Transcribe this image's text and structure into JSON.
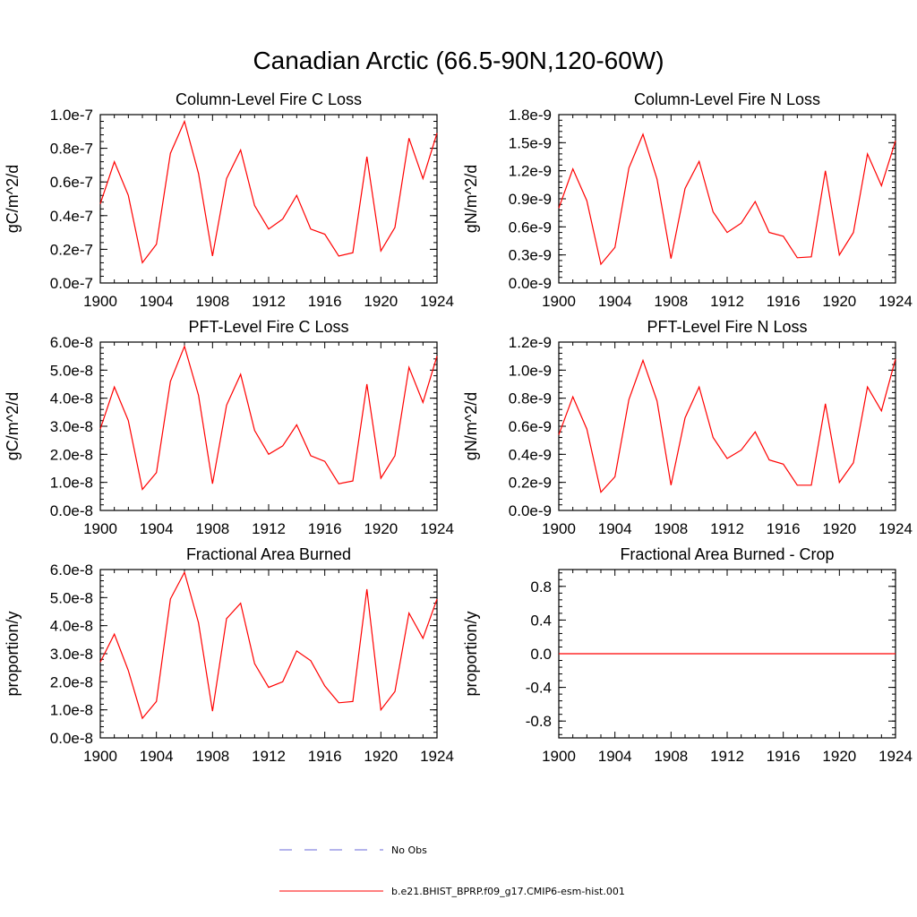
{
  "title": "Canadian Arctic (66.5-90N,120-60W)",
  "chart_data": [
    {
      "type": "line",
      "title": "Column-Level Fire C Loss",
      "ylabel": "gC/m^2/d",
      "xlabel": "",
      "xlim": [
        1900,
        1924
      ],
      "ylim": [
        0,
        1e-07
      ],
      "xticks": [
        "1900",
        "1904",
        "1908",
        "1912",
        "1916",
        "1920",
        "1924"
      ],
      "yticks": [
        "0.0e-7",
        "0.2e-7",
        "0.4e-7",
        "0.6e-7",
        "0.8e-7",
        "1.0e-7"
      ],
      "x": [
        1900,
        1901,
        1902,
        1903,
        1904,
        1905,
        1906,
        1907,
        1908,
        1909,
        1910,
        1911,
        1912,
        1913,
        1914,
        1915,
        1916,
        1917,
        1918,
        1919,
        1920,
        1921,
        1922,
        1923,
        1924
      ],
      "series": [
        {
          "name": "b.e21.BHIST_BPRP.f09_g17.CMIP6-esm-hist.001",
          "color": "#ff0000",
          "values": [
            4.7e-08,
            7.2e-08,
            5.2e-08,
            1.2e-08,
            2.3e-08,
            7.7e-08,
            9.6e-08,
            6.5e-08,
            1.6e-08,
            6.2e-08,
            7.9e-08,
            4.6e-08,
            3.2e-08,
            3.8e-08,
            5.2e-08,
            3.2e-08,
            2.9e-08,
            1.6e-08,
            1.8e-08,
            7.5e-08,
            1.9e-08,
            3.3e-08,
            8.6e-08,
            6.2e-08,
            8.9e-08
          ]
        }
      ]
    },
    {
      "type": "line",
      "title": "Column-Level Fire N Loss",
      "ylabel": "gN/m^2/d",
      "xlabel": "",
      "xlim": [
        1900,
        1924
      ],
      "ylim": [
        0,
        1.8e-09
      ],
      "xticks": [
        "1900",
        "1904",
        "1908",
        "1912",
        "1916",
        "1920",
        "1924"
      ],
      "yticks": [
        "0.0e-9",
        "0.3e-9",
        "0.6e-9",
        "0.9e-9",
        "1.2e-9",
        "1.5e-9",
        "1.8e-9"
      ],
      "x": [
        1900,
        1901,
        1902,
        1903,
        1904,
        1905,
        1906,
        1907,
        1908,
        1909,
        1910,
        1911,
        1912,
        1913,
        1914,
        1915,
        1916,
        1917,
        1918,
        1919,
        1920,
        1921,
        1922,
        1923,
        1924
      ],
      "series": [
        {
          "name": "b.e21.BHIST_BPRP.f09_g17.CMIP6-esm-hist.001",
          "color": "#ff0000",
          "values": [
            8e-10,
            1.22e-09,
            8.8e-10,
            2e-10,
            3.8e-10,
            1.23e-09,
            1.59e-09,
            1.11e-09,
            2.6e-10,
            1.01e-09,
            1.3e-09,
            7.6e-10,
            5.4e-10,
            6.4e-10,
            8.7e-10,
            5.4e-10,
            5e-10,
            2.7e-10,
            2.8e-10,
            1.2e-09,
            3e-10,
            5.4e-10,
            1.38e-09,
            1.04e-09,
            1.52e-09
          ]
        }
      ]
    },
    {
      "type": "line",
      "title": "PFT-Level Fire C Loss",
      "ylabel": "gC/m^2/d",
      "xlabel": "",
      "xlim": [
        1900,
        1924
      ],
      "ylim": [
        0,
        6e-08
      ],
      "xticks": [
        "1900",
        "1904",
        "1908",
        "1912",
        "1916",
        "1920",
        "1924"
      ],
      "yticks": [
        "0.0e-8",
        "1.0e-8",
        "2.0e-8",
        "3.0e-8",
        "4.0e-8",
        "5.0e-8",
        "6.0e-8"
      ],
      "x": [
        1900,
        1901,
        1902,
        1903,
        1904,
        1905,
        1906,
        1907,
        1908,
        1909,
        1910,
        1911,
        1912,
        1913,
        1914,
        1915,
        1916,
        1917,
        1918,
        1919,
        1920,
        1921,
        1922,
        1923,
        1924
      ],
      "series": [
        {
          "name": "b.e21.BHIST_BPRP.f09_g17.CMIP6-esm-hist.001",
          "color": "#ff0000",
          "values": [
            2.9e-08,
            4.4e-08,
            3.2e-08,
            7.5e-09,
            1.35e-08,
            4.6e-08,
            5.85e-08,
            4.1e-08,
            9.5e-09,
            3.75e-08,
            4.85e-08,
            2.85e-08,
            2e-08,
            2.3e-08,
            3.05e-08,
            1.95e-08,
            1.75e-08,
            9.5e-09,
            1.05e-08,
            4.5e-08,
            1.15e-08,
            1.95e-08,
            5.1e-08,
            3.85e-08,
            5.5e-08
          ]
        }
      ]
    },
    {
      "type": "line",
      "title": "PFT-Level Fire N Loss",
      "ylabel": "gN/m^2/d",
      "xlabel": "",
      "xlim": [
        1900,
        1924
      ],
      "ylim": [
        0,
        1.2e-09
      ],
      "xticks": [
        "1900",
        "1904",
        "1908",
        "1912",
        "1916",
        "1920",
        "1924"
      ],
      "yticks": [
        "0.0e-9",
        "0.2e-9",
        "0.4e-9",
        "0.6e-9",
        "0.8e-9",
        "1.0e-9",
        "1.2e-9"
      ],
      "x": [
        1900,
        1901,
        1902,
        1903,
        1904,
        1905,
        1906,
        1907,
        1908,
        1909,
        1910,
        1911,
        1912,
        1913,
        1914,
        1915,
        1916,
        1917,
        1918,
        1919,
        1920,
        1921,
        1922,
        1923,
        1924
      ],
      "series": [
        {
          "name": "b.e21.BHIST_BPRP.f09_g17.CMIP6-esm-hist.001",
          "color": "#ff0000",
          "values": [
            5.4e-10,
            8.1e-10,
            5.8e-10,
            1.3e-10,
            2.4e-10,
            7.9e-10,
            1.07e-09,
            7.8e-10,
            1.8e-10,
            6.6e-10,
            8.8e-10,
            5.2e-10,
            3.7e-10,
            4.3e-10,
            5.6e-10,
            3.6e-10,
            3.3e-10,
            1.8e-10,
            1.8e-10,
            7.6e-10,
            2e-10,
            3.4e-10,
            8.8e-10,
            7.1e-10,
            1.08e-09
          ]
        }
      ]
    },
    {
      "type": "line",
      "title": "Fractional Area Burned",
      "ylabel": "proportion/y",
      "xlabel": "",
      "xlim": [
        1900,
        1924
      ],
      "ylim": [
        0,
        6e-08
      ],
      "xticks": [
        "1900",
        "1904",
        "1908",
        "1912",
        "1916",
        "1920",
        "1924"
      ],
      "yticks": [
        "0.0e-8",
        "1.0e-8",
        "2.0e-8",
        "3.0e-8",
        "4.0e-8",
        "5.0e-8",
        "6.0e-8"
      ],
      "x": [
        1900,
        1901,
        1902,
        1903,
        1904,
        1905,
        1906,
        1907,
        1908,
        1909,
        1910,
        1911,
        1912,
        1913,
        1914,
        1915,
        1916,
        1917,
        1918,
        1919,
        1920,
        1921,
        1922,
        1923,
        1924
      ],
      "series": [
        {
          "name": "b.e21.BHIST_BPRP.f09_g17.CMIP6-esm-hist.001",
          "color": "#ff0000",
          "values": [
            2.7e-08,
            3.7e-08,
            2.4e-08,
            7e-09,
            1.3e-08,
            4.95e-08,
            5.9e-08,
            4.1e-08,
            9.5e-09,
            4.25e-08,
            4.8e-08,
            2.65e-08,
            1.8e-08,
            2e-08,
            3.1e-08,
            2.75e-08,
            1.85e-08,
            1.25e-08,
            1.3e-08,
            5.3e-08,
            1e-08,
            1.65e-08,
            4.45e-08,
            3.55e-08,
            4.95e-08
          ]
        }
      ]
    },
    {
      "type": "line",
      "title": "Fractional Area Burned - Crop",
      "ylabel": "proportion/y",
      "xlabel": "",
      "xlim": [
        1900,
        1924
      ],
      "ylim": [
        -1.0,
        1.0
      ],
      "xticks": [
        "1900",
        "1904",
        "1908",
        "1912",
        "1916",
        "1920",
        "1924"
      ],
      "yticks": [
        "-0.8",
        "-0.4",
        "0.0",
        "0.4",
        "0.8"
      ],
      "ytick_values": [
        -0.8,
        -0.4,
        0.0,
        0.4,
        0.8
      ],
      "x": [
        1900,
        1901,
        1902,
        1903,
        1904,
        1905,
        1906,
        1907,
        1908,
        1909,
        1910,
        1911,
        1912,
        1913,
        1914,
        1915,
        1916,
        1917,
        1918,
        1919,
        1920,
        1921,
        1922,
        1923,
        1924
      ],
      "series": [
        {
          "name": "b.e21.BHIST_BPRP.f09_g17.CMIP6-esm-hist.001",
          "color": "#ff0000",
          "values": [
            0,
            0,
            0,
            0,
            0,
            0,
            0,
            0,
            0,
            0,
            0,
            0,
            0,
            0,
            0,
            0,
            0,
            0,
            0,
            0,
            0,
            0,
            0,
            0,
            0
          ]
        }
      ]
    }
  ],
  "legend": [
    {
      "label": "No Obs",
      "color": "#6a6ad8",
      "style": "dashed"
    },
    {
      "label": "b.e21.BHIST_BPRP.f09_g17.CMIP6-esm-hist.001",
      "color": "#ff0000",
      "style": "solid"
    }
  ]
}
